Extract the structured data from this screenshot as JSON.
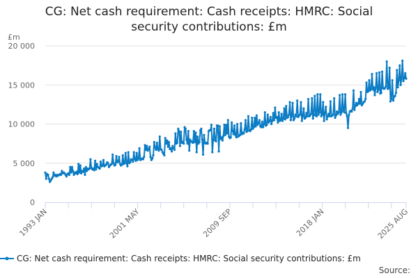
{
  "chart_data": {
    "type": "line",
    "title_line1": "CG: Net cash requirement: Cash receipts: HMRC: Social",
    "title_line2": "security contributions: £m",
    "ylabel": "£m",
    "xlabel": "",
    "ylim": [
      0,
      20000
    ],
    "yticks": [
      0,
      5000,
      10000,
      15000,
      20000
    ],
    "ytick_labels": [
      "0",
      "5 000",
      "10 000",
      "15 000",
      "20 000"
    ],
    "start": "1993 JAN",
    "frequency": "monthly",
    "xtick_labels": [
      {
        "label": "1993 JAN",
        "index": 0
      },
      {
        "label": "2001 MAY",
        "index": 100
      },
      {
        "label": "2009 SEP",
        "index": 200
      },
      {
        "label": "2018 JAN",
        "index": 300
      },
      {
        "label": "2025 AUG",
        "index": 391
      }
    ],
    "minor_tick_every": 25,
    "grid": true,
    "legend_position": "bottom",
    "series": [
      {
        "name": "CG: Net cash requirement: Cash receipts: HMRC: Social security contributions: £m",
        "color": "#0b7bc4",
        "values": [
          3800,
          3000,
          3600,
          3500,
          3000,
          2600,
          2800,
          3000,
          3200,
          3800,
          3400,
          3500,
          3300,
          3500,
          3400,
          3500,
          3600,
          3500,
          4000,
          3700,
          3800,
          3700,
          3500,
          3300,
          3600,
          3700,
          3500,
          4500,
          3800,
          4500,
          4000,
          3500,
          3800,
          3700,
          3900,
          3600,
          4900,
          3800,
          4700,
          3700,
          4000,
          3900,
          4300,
          3500,
          4500,
          4000,
          4300,
          4200,
          4300,
          5500,
          4400,
          4200,
          4300,
          4100,
          5300,
          4200,
          4900,
          4500,
          4400,
          4300,
          5200,
          4600,
          4700,
          5400,
          4600,
          4700,
          4800,
          5100,
          5000,
          4500,
          4700,
          4800,
          4900,
          6100,
          5000,
          4700,
          4800,
          5900,
          5100,
          5200,
          5800,
          4900,
          4700,
          4800,
          6000,
          4900,
          5000,
          6300,
          5000,
          4600,
          6400,
          5000,
          5100,
          5500,
          5400,
          5200,
          6400,
          5500,
          5300,
          6300,
          5400,
          5600,
          6900,
          5400,
          5500,
          5600,
          5500,
          5800,
          7300,
          6700,
          7200,
          6600,
          6800,
          7100,
          5800,
          5400,
          5600,
          6000,
          7700,
          7000,
          6700,
          7600,
          6800,
          6600,
          8400,
          6800,
          6700,
          6400,
          6200,
          6000,
          8200,
          7500,
          7900,
          7100,
          7700,
          6800,
          6900,
          6500,
          7200,
          6900,
          6700,
          8800,
          7500,
          7600,
          9400,
          9100,
          7200,
          9000,
          7600,
          7700,
          7500,
          9600,
          9400,
          8000,
          7500,
          9100,
          6600,
          8000,
          7800,
          7700,
          7600,
          9100,
          7700,
          8900,
          6400,
          8400,
          7500,
          7700,
          9200,
          9400,
          8000,
          6100,
          8600,
          7600,
          7500,
          7600,
          7500,
          9100,
          9200,
          9200,
          9900,
          6400,
          8000,
          9400,
          7900,
          7800,
          9800,
          9800,
          6500,
          9700,
          8100,
          8300,
          7900,
          8500,
          9900,
          8600,
          9900,
          8800,
          10500,
          8400,
          8200,
          8300,
          10200,
          9100,
          8700,
          9800,
          8600,
          8300,
          10000,
          8400,
          8500,
          8600,
          10100,
          8700,
          8900,
          8800,
          9300,
          10500,
          9000,
          9100,
          11000,
          9200,
          9100,
          9300,
          10800,
          9400,
          9600,
          10800,
          9700,
          11100,
          9900,
          10100,
          10500,
          9700,
          9600,
          10300,
          9600,
          10000,
          11500,
          9800,
          9900,
          11200,
          10200,
          10400,
          10900,
          10000,
          10400,
          11400,
          10500,
          12100,
          10800,
          10900,
          10200,
          11500,
          10400,
          10500,
          11300,
          10400,
          10700,
          12000,
          10600,
          12300,
          10800,
          10900,
          11200,
          12800,
          10500,
          11000,
          12700,
          10500,
          10700,
          11200,
          11000,
          13000,
          10900,
          11100,
          11200,
          12800,
          10400,
          11000,
          12000,
          10700,
          10800,
          11400,
          11000,
          13200,
          11000,
          11100,
          11300,
          13300,
          10700,
          11200,
          13600,
          11100,
          11000,
          13800,
          11200,
          11500,
          13800,
          11000,
          11200,
          12800,
          10400,
          11400,
          12200,
          10600,
          11000,
          11300,
          11000,
          12900,
          11000,
          11100,
          11200,
          13300,
          10800,
          11100,
          11600,
          11300,
          11500,
          13700,
          11200,
          11500,
          13800,
          11700,
          11500,
          13800,
          11400,
          11000,
          9500,
          11200,
          11600,
          11700,
          11600,
          12000,
          14300,
          11800,
          12300,
          12700,
          12400,
          12600,
          13200,
          12600,
          14100,
          12400,
          12600,
          12800,
          12900,
          13200,
          15300,
          14100,
          14200,
          15600,
          14300,
          14500,
          16400,
          14400,
          14700,
          13700,
          14600,
          16500,
          14100,
          14400,
          16600,
          13900,
          14000,
          16700,
          14600,
          14500,
          14600,
          14800,
          18000,
          14500,
          14600,
          17200,
          12900,
          13200,
          15600,
          13000,
          13500,
          13600,
          14000,
          16900,
          14700,
          15600,
          17500,
          15000,
          15800,
          18100,
          15500,
          15900,
          16500,
          15800
        ]
      }
    ],
    "source_label": "Source:"
  }
}
